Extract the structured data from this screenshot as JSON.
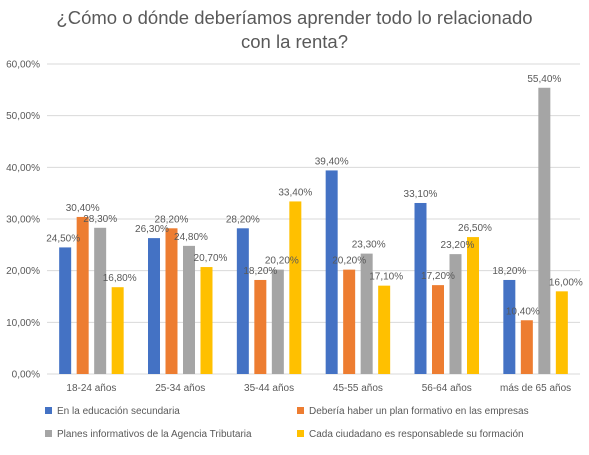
{
  "chart_data": {
    "type": "bar",
    "title_lines": [
      "¿Cómo o dónde deberíamos aprender todo lo relacionado",
      "con la renta?"
    ],
    "categories": [
      "18-24 años",
      "25-34 años",
      "35-44 años",
      "45-55 años",
      "56-64 años",
      "más de 65 años"
    ],
    "series": [
      {
        "name": "En la educación secundaria",
        "color": "#4472C4",
        "values": [
          24.5,
          26.3,
          28.2,
          39.4,
          33.1,
          18.2
        ],
        "labels": [
          "24,50%",
          "26,30%",
          "28,20%",
          "39,40%",
          "33,10%",
          "18,20%"
        ]
      },
      {
        "name": "Debería haber un plan formativo en las empresas",
        "color": "#ED7D31",
        "values": [
          30.4,
          28.2,
          18.2,
          20.2,
          17.2,
          10.4
        ],
        "labels": [
          "30,40%",
          "28,20%",
          "18,20%",
          "20,20%",
          "17,20%",
          "10,40%"
        ]
      },
      {
        "name": "Planes informativos  de la Agencia Tributaria",
        "color": "#A5A5A5",
        "values": [
          28.3,
          24.8,
          20.2,
          23.3,
          23.2,
          55.4
        ],
        "labels": [
          "28,30%",
          "24,80%",
          "20,20%",
          "23,30%",
          "23,20%",
          "55,40%"
        ]
      },
      {
        "name": "Cada ciudadano es responsablede su formación",
        "color": "#FFC000",
        "values": [
          16.8,
          20.7,
          33.4,
          17.1,
          26.5,
          16.0
        ],
        "labels": [
          "16,80%",
          "20,70%",
          "33,40%",
          "17,10%",
          "26,50%",
          "16,00%"
        ]
      }
    ],
    "ylim": [
      0,
      60
    ],
    "y_ticks": [
      0,
      10,
      20,
      30,
      40,
      50,
      60
    ],
    "y_tick_labels": [
      "0,00%",
      "10,00%",
      "20,00%",
      "30,00%",
      "40,00%",
      "50,00%",
      "60,00%"
    ],
    "grid": true,
    "legend_position": "bottom",
    "gridline_color": "#D9D9D9",
    "text_color": "#595959"
  }
}
